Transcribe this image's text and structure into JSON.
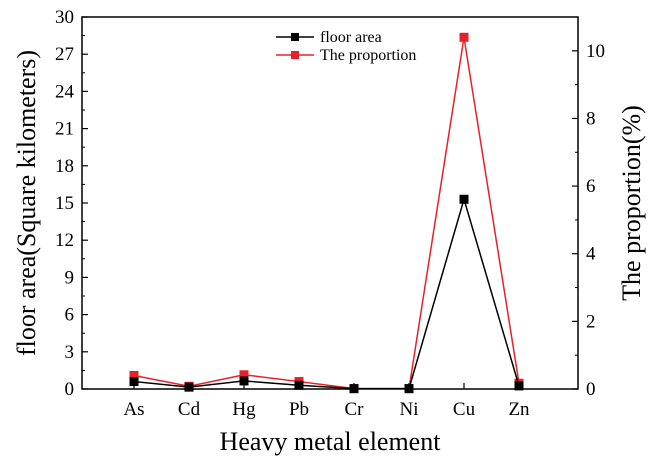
{
  "chart_data": {
    "type": "line",
    "categories": [
      "As",
      "Cd",
      "Hg",
      "Pb",
      "Cr",
      "Ni",
      "Cu",
      "Zn"
    ],
    "xlabel": "Heavy metal element",
    "ylabel": "floor area(Square kilometers)",
    "y2label": "The proportion(%)",
    "ylim": [
      0,
      30
    ],
    "y2lim": [
      0,
      11
    ],
    "yticks": [
      0,
      3,
      6,
      9,
      12,
      15,
      18,
      21,
      24,
      27,
      30
    ],
    "y2ticks": [
      0,
      2,
      4,
      6,
      8,
      10
    ],
    "legend_position": "top-center",
    "series": [
      {
        "name": "floor area",
        "axis": "left",
        "color": "#000000",
        "marker": "square",
        "values": [
          0.6,
          0.15,
          0.65,
          0.3,
          0.03,
          0.03,
          15.3,
          0.25
        ]
      },
      {
        "name": "The proportion",
        "axis": "right",
        "color": "#e8202a",
        "marker": "square",
        "values": [
          0.4,
          0.08,
          0.42,
          0.22,
          0.01,
          0.01,
          10.4,
          0.17
        ]
      }
    ]
  }
}
